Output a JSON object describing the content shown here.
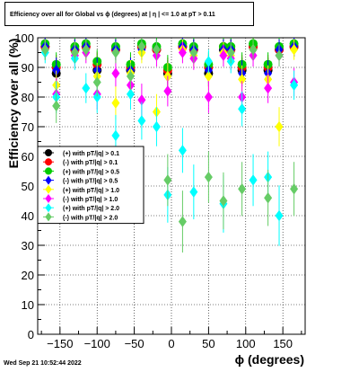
{
  "chart_data": {
    "type": "scatter",
    "title": "Efficiency over all for Global vs ϕ (degrees) at | η | <= 1.0 at pT > 0.11",
    "xlabel": "ϕ (degrees)",
    "ylabel": "Efficiency over all (%)",
    "xlim": [
      -180,
      180
    ],
    "ylim": [
      0,
      100
    ],
    "xticks": [
      -150,
      -100,
      -50,
      0,
      50,
      100,
      150
    ],
    "yticks": [
      0,
      10,
      20,
      30,
      40,
      50,
      60,
      70,
      80,
      90,
      100
    ],
    "grid": true,
    "legend_position": "middle-left",
    "x": [
      -170,
      -155,
      -130,
      -115,
      -100,
      -75,
      -55,
      -40,
      -20,
      -5,
      15,
      30,
      50,
      70,
      80,
      95,
      110,
      130,
      145,
      165
    ],
    "series": [
      {
        "name": "(+) with pT/|q| > 0.1",
        "color": "#000000",
        "marker": "circle",
        "values": [
          97,
          88,
          96,
          97,
          89,
          96,
          89,
          97,
          96,
          88,
          97,
          96,
          88,
          96,
          96,
          89,
          97,
          89,
          96,
          97
        ]
      },
      {
        "name": "(-) with pT/|q| > 0.1",
        "color": "#ff0000",
        "marker": "circle",
        "values": [
          97,
          90,
          96,
          97,
          91,
          96,
          90,
          97,
          96,
          89,
          97,
          96,
          90,
          97,
          96,
          90,
          97,
          90,
          96,
          97
        ]
      },
      {
        "name": "(+) with pT/|q| > 0.5",
        "color": "#00cc00",
        "marker": "circle",
        "values": [
          98,
          91,
          97,
          98,
          92,
          97,
          91,
          98,
          97,
          90,
          98,
          97,
          91,
          97,
          97,
          91,
          98,
          91,
          97,
          98
        ]
      },
      {
        "name": "(-) with pT/|q| > 0.5",
        "color": "#0000ff",
        "marker": "diamond",
        "values": [
          97,
          89,
          96,
          97,
          89,
          96,
          89,
          96,
          96,
          87,
          97,
          96,
          89,
          96,
          96,
          88,
          96,
          88,
          96,
          97
        ]
      },
      {
        "name": "(+) with pT/|q| > 1.0",
        "color": "#ffff00",
        "marker": "diamond",
        "values": [
          96,
          84,
          95,
          96,
          87,
          78,
          88,
          95,
          75,
          87,
          96,
          94,
          87,
          95,
          94,
          86,
          96,
          86,
          70,
          96
        ]
      },
      {
        "name": "(-) with pT/|q| > 1.0",
        "color": "#ff00ff",
        "marker": "diamond",
        "values": [
          96,
          81,
          94,
          95,
          81,
          88,
          84,
          79,
          94,
          82,
          95,
          93,
          80,
          94,
          93,
          80,
          94,
          83,
          94,
          85
        ]
      },
      {
        "name": "(+) with pT/|q| > 2.0",
        "color": "#00ffff",
        "marker": "diamond",
        "values": [
          95,
          80,
          93,
          83,
          80,
          67,
          81,
          72,
          70,
          47,
          62,
          48,
          92,
          44,
          92,
          76,
          52,
          53,
          40,
          84
        ]
      },
      {
        "name": "(-) with pT/|q| > 2.0",
        "color": "#66cc66",
        "marker": "diamond",
        "values": [
          96,
          77,
          95,
          96,
          85,
          95,
          87,
          97,
          96,
          52,
          38,
          95,
          53,
          45,
          95,
          49,
          96,
          46,
          94,
          49
        ]
      }
    ]
  },
  "footer": {
    "timestamp": "Wed Sep 21 10:52:44 2022"
  }
}
